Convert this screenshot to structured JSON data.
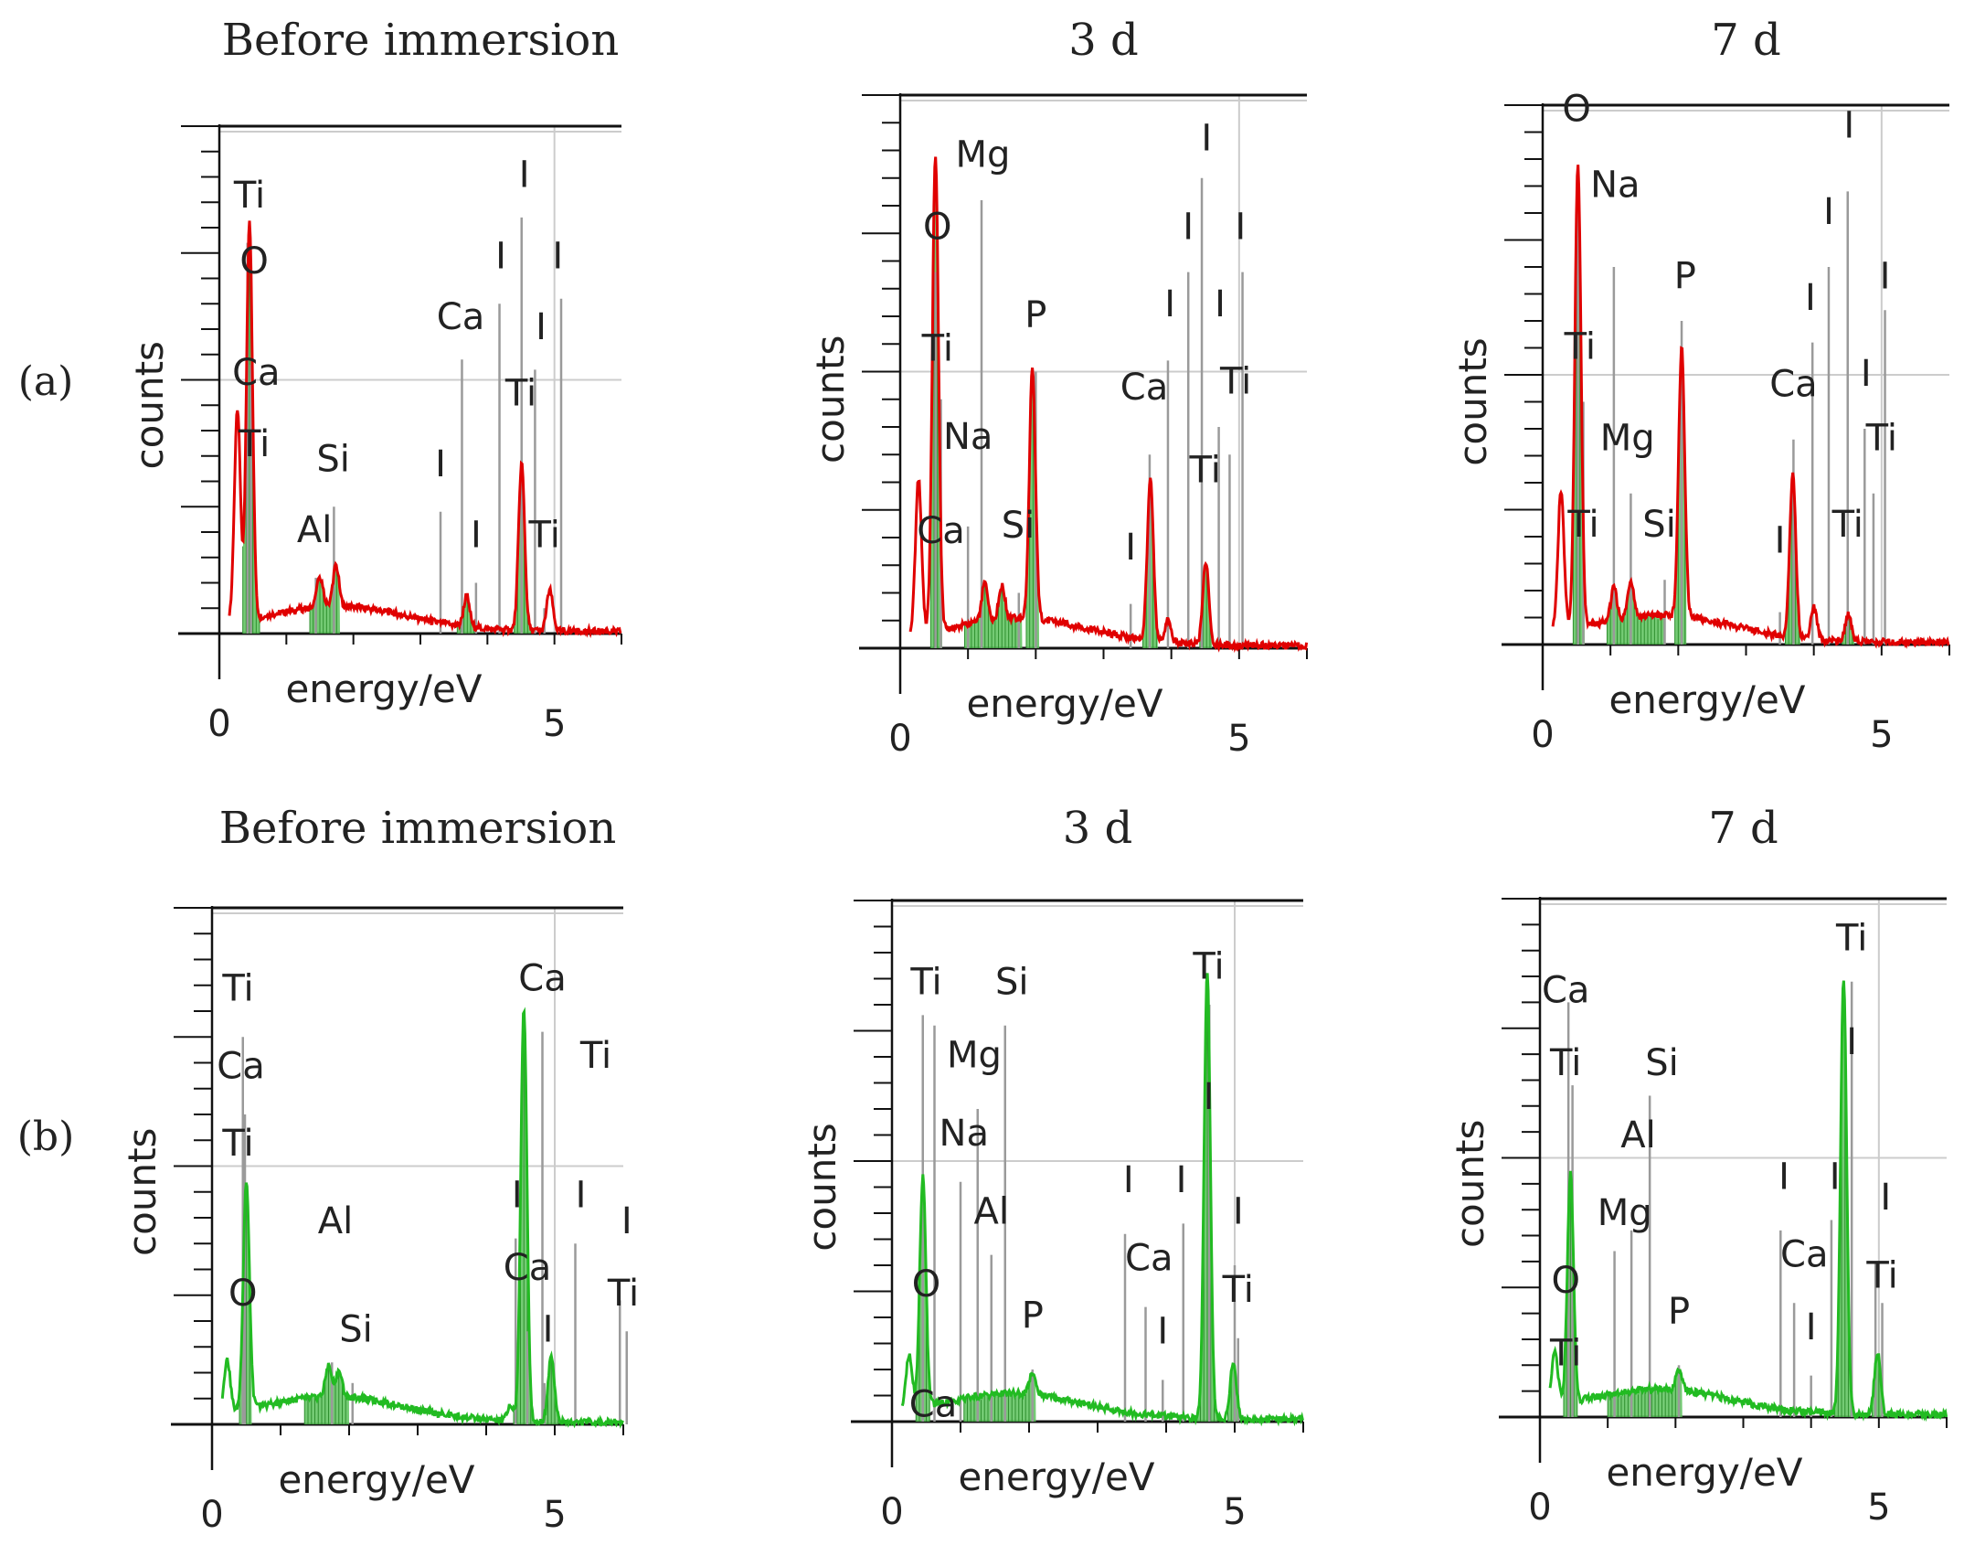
{
  "figure": {
    "row_labels": [
      "(a)",
      "(b)"
    ]
  },
  "chart_data": [
    {
      "type": "line",
      "row": "(a)",
      "title": "Before immersion",
      "xlabel": "energy/eV",
      "ylabel": "counts",
      "xticks": [
        0,
        5
      ],
      "xlim": [
        0,
        6
      ],
      "ylim": [
        0,
        100
      ],
      "color": "#e00000",
      "fill": "#5cc25c",
      "peaks": [
        [
          0.27,
          42
        ],
        [
          0.45,
          78
        ],
        [
          1.5,
          6
        ],
        [
          1.74,
          8
        ],
        [
          3.69,
          6
        ],
        [
          4.51,
          33
        ],
        [
          4.93,
          8
        ]
      ],
      "bands": [
        [
          0.35,
          0.6
        ],
        [
          1.35,
          1.8
        ],
        [
          3.55,
          3.8
        ],
        [
          4.4,
          4.65
        ]
      ],
      "labels": [
        {
          "text": "Ti",
          "x": 0.45,
          "y": 84
        },
        {
          "text": "O",
          "x": 0.52,
          "y": 71
        },
        {
          "text": "Ca",
          "x": 0.55,
          "y": 49
        },
        {
          "text": "Ti",
          "x": 0.52,
          "y": 35
        },
        {
          "text": "Si",
          "x": 1.7,
          "y": 32
        },
        {
          "text": "Al",
          "x": 1.42,
          "y": 18
        },
        {
          "text": "Ca",
          "x": 3.6,
          "y": 60
        },
        {
          "text": "I",
          "x": 3.3,
          "y": 31
        },
        {
          "text": "I",
          "x": 3.83,
          "y": 17
        },
        {
          "text": "I",
          "x": 4.2,
          "y": 72
        },
        {
          "text": "I",
          "x": 4.55,
          "y": 88
        },
        {
          "text": "I",
          "x": 4.8,
          "y": 58
        },
        {
          "text": "I",
          "x": 5.05,
          "y": 72
        },
        {
          "text": "Ti",
          "x": 4.5,
          "y": 45
        },
        {
          "text": "Ti",
          "x": 4.85,
          "y": 17
        }
      ],
      "lines": [
        [
          0.42,
          77
        ],
        [
          0.47,
          53
        ],
        [
          1.44,
          11
        ],
        [
          1.71,
          25
        ],
        [
          3.3,
          24
        ],
        [
          3.62,
          54
        ],
        [
          3.83,
          10
        ],
        [
          4.18,
          65
        ],
        [
          4.51,
          82
        ],
        [
          4.71,
          52
        ],
        [
          4.85,
          5
        ],
        [
          5.1,
          66
        ]
      ]
    },
    {
      "type": "line",
      "row": "(a)",
      "title": "3 d",
      "xlabel": "energy/eV",
      "ylabel": "counts",
      "xticks": [
        0,
        5
      ],
      "xlim": [
        0,
        6
      ],
      "ylim": [
        0,
        100
      ],
      "color": "#e00000",
      "fill": "#5cc25c",
      "peaks": [
        [
          0.27,
          28
        ],
        [
          0.52,
          86
        ],
        [
          1.25,
          7
        ],
        [
          1.5,
          6
        ],
        [
          1.95,
          45
        ],
        [
          3.69,
          29
        ],
        [
          4.51,
          15
        ],
        [
          3.95,
          4
        ]
      ],
      "bands": [
        [
          0.45,
          0.62
        ],
        [
          0.95,
          1.8
        ],
        [
          1.86,
          2.05
        ],
        [
          3.58,
          3.8
        ],
        [
          4.42,
          4.6
        ]
      ],
      "labels": [
        {
          "text": "Mg",
          "x": 1.22,
          "y": 87
        },
        {
          "text": "O",
          "x": 0.55,
          "y": 74
        },
        {
          "text": "P",
          "x": 2.0,
          "y": 58
        },
        {
          "text": "Ti",
          "x": 0.55,
          "y": 52
        },
        {
          "text": "Na",
          "x": 1.0,
          "y": 36
        },
        {
          "text": "Ca",
          "x": 0.6,
          "y": 19
        },
        {
          "text": "Si",
          "x": 1.74,
          "y": 20
        },
        {
          "text": "Ca",
          "x": 3.6,
          "y": 45
        },
        {
          "text": "Ti",
          "x": 4.5,
          "y": 30
        },
        {
          "text": "I",
          "x": 3.4,
          "y": 16
        },
        {
          "text": "I",
          "x": 3.98,
          "y": 60
        },
        {
          "text": "I",
          "x": 4.25,
          "y": 74
        },
        {
          "text": "I",
          "x": 4.52,
          "y": 90
        },
        {
          "text": "I",
          "x": 4.72,
          "y": 60
        },
        {
          "text": "I",
          "x": 5.02,
          "y": 74
        },
        {
          "text": "Ti",
          "x": 4.95,
          "y": 46
        }
      ],
      "lines": [
        [
          0.52,
          68
        ],
        [
          0.6,
          45
        ],
        [
          1.0,
          22
        ],
        [
          1.2,
          81
        ],
        [
          1.75,
          10
        ],
        [
          2.0,
          50
        ],
        [
          3.68,
          35
        ],
        [
          3.4,
          8
        ],
        [
          3.95,
          52
        ],
        [
          4.25,
          68
        ],
        [
          4.45,
          85
        ],
        [
          4.7,
          40
        ],
        [
          4.86,
          35
        ],
        [
          5.05,
          68
        ]
      ]
    },
    {
      "type": "line",
      "row": "(a)",
      "title": "7 d",
      "xlabel": "energy/eV",
      "ylabel": "counts",
      "xticks": [
        0,
        5
      ],
      "xlim": [
        0,
        6
      ],
      "ylim": [
        0,
        100
      ],
      "color": "#e00000",
      "fill": "#5cc25c",
      "peaks": [
        [
          0.27,
          26
        ],
        [
          0.52,
          86
        ],
        [
          1.05,
          6
        ],
        [
          1.3,
          7
        ],
        [
          2.05,
          50
        ],
        [
          3.69,
          30
        ],
        [
          4.51,
          5
        ],
        [
          4.0,
          6
        ]
      ],
      "bands": [
        [
          0.45,
          0.62
        ],
        [
          0.95,
          1.8
        ],
        [
          1.95,
          2.12
        ],
        [
          3.58,
          3.8
        ],
        [
          4.42,
          4.6
        ]
      ],
      "labels": [
        {
          "text": "O",
          "x": 0.5,
          "y": 97
        },
        {
          "text": "Na",
          "x": 1.07,
          "y": 83
        },
        {
          "text": "P",
          "x": 2.1,
          "y": 66
        },
        {
          "text": "Ti",
          "x": 0.55,
          "y": 53
        },
        {
          "text": "Mg",
          "x": 1.25,
          "y": 36
        },
        {
          "text": "Si",
          "x": 1.72,
          "y": 20
        },
        {
          "text": "Ti",
          "x": 0.6,
          "y": 20
        },
        {
          "text": "Ca",
          "x": 3.7,
          "y": 46
        },
        {
          "text": "I",
          "x": 3.5,
          "y": 17
        },
        {
          "text": "I",
          "x": 3.95,
          "y": 62
        },
        {
          "text": "I",
          "x": 4.22,
          "y": 78
        },
        {
          "text": "I",
          "x": 4.52,
          "y": 94
        },
        {
          "text": "I",
          "x": 4.77,
          "y": 48
        },
        {
          "text": "I",
          "x": 5.05,
          "y": 66
        },
        {
          "text": "Ti",
          "x": 4.5,
          "y": 20
        },
        {
          "text": "Ti",
          "x": 5.0,
          "y": 36
        }
      ],
      "lines": [
        [
          0.52,
          88
        ],
        [
          0.6,
          45
        ],
        [
          1.05,
          70
        ],
        [
          1.3,
          28
        ],
        [
          1.8,
          12
        ],
        [
          2.05,
          60
        ],
        [
          3.7,
          38
        ],
        [
          3.5,
          6
        ],
        [
          3.98,
          56
        ],
        [
          4.22,
          70
        ],
        [
          4.5,
          84
        ],
        [
          4.75,
          40
        ],
        [
          4.88,
          28
        ],
        [
          5.05,
          62
        ]
      ]
    },
    {
      "type": "line",
      "row": "(b)",
      "title": "Before immersion",
      "xlabel": "energy/eV",
      "ylabel": "counts",
      "xticks": [
        0,
        5
      ],
      "xlim": [
        0,
        6
      ],
      "ylim": [
        0,
        100
      ],
      "color": "#22bb22",
      "fill": "#5cc25c",
      "peaks": [
        [
          0.22,
          10
        ],
        [
          0.5,
          44
        ],
        [
          1.85,
          5
        ],
        [
          1.7,
          6
        ],
        [
          4.35,
          3
        ],
        [
          4.55,
          80
        ],
        [
          4.95,
          13
        ]
      ],
      "bands": [
        [
          0.4,
          0.58
        ],
        [
          1.35,
          2.0
        ],
        [
          4.4,
          4.75
        ],
        [
          4.85,
          5.05
        ]
      ],
      "labels": [
        {
          "text": "Ti",
          "x": 0.38,
          "y": 82
        },
        {
          "text": "Ca",
          "x": 0.42,
          "y": 67
        },
        {
          "text": "Ti",
          "x": 0.38,
          "y": 52
        },
        {
          "text": "O",
          "x": 0.45,
          "y": 23
        },
        {
          "text": "Al",
          "x": 1.8,
          "y": 37
        },
        {
          "text": "Si",
          "x": 2.1,
          "y": 16
        },
        {
          "text": "Ca",
          "x": 4.82,
          "y": 84
        },
        {
          "text": "Ti",
          "x": 5.6,
          "y": 69
        },
        {
          "text": "I",
          "x": 4.45,
          "y": 42
        },
        {
          "text": "Ca",
          "x": 4.6,
          "y": 28
        },
        {
          "text": "I",
          "x": 4.9,
          "y": 16
        },
        {
          "text": "I",
          "x": 5.38,
          "y": 42
        },
        {
          "text": "I",
          "x": 6.05,
          "y": 37
        },
        {
          "text": "Ti",
          "x": 6.0,
          "y": 23
        }
      ],
      "lines": [
        [
          0.45,
          75
        ],
        [
          0.48,
          60
        ],
        [
          0.45,
          36
        ],
        [
          1.75,
          12
        ],
        [
          2.05,
          8
        ],
        [
          4.43,
          36
        ],
        [
          4.6,
          18
        ],
        [
          4.85,
          8
        ],
        [
          4.82,
          76
        ],
        [
          5.3,
          35
        ],
        [
          5.95,
          24
        ],
        [
          6.05,
          18
        ]
      ]
    },
    {
      "type": "line",
      "row": "(b)",
      "title": "3 d",
      "xlabel": "energy/eV",
      "ylabel": "counts",
      "xticks": [
        0,
        5
      ],
      "xlim": [
        0,
        6
      ],
      "ylim": [
        0,
        100
      ],
      "color": "#22bb22",
      "fill": "#5cc25c",
      "peaks": [
        [
          0.25,
          10
        ],
        [
          0.45,
          44
        ],
        [
          2.05,
          4
        ],
        [
          4.6,
          86
        ],
        [
          4.98,
          11
        ]
      ],
      "bands": [
        [
          0.35,
          0.55
        ],
        [
          1.05,
          2.1
        ],
        [
          4.45,
          4.75
        ],
        [
          4.9,
          5.05
        ]
      ],
      "labels": [
        {
          "text": "Ti",
          "x": 0.5,
          "y": 82
        },
        {
          "text": "Si",
          "x": 1.75,
          "y": 82
        },
        {
          "text": "Mg",
          "x": 1.2,
          "y": 68
        },
        {
          "text": "Na",
          "x": 1.05,
          "y": 53
        },
        {
          "text": "Al",
          "x": 1.45,
          "y": 38
        },
        {
          "text": "O",
          "x": 0.5,
          "y": 24
        },
        {
          "text": "P",
          "x": 2.05,
          "y": 18
        },
        {
          "text": "Ca",
          "x": 0.6,
          "y": 1
        },
        {
          "text": "Ti",
          "x": 4.62,
          "y": 85
        },
        {
          "text": "I",
          "x": 4.62,
          "y": 60
        },
        {
          "text": "I",
          "x": 3.45,
          "y": 44
        },
        {
          "text": "Ca",
          "x": 3.75,
          "y": 29
        },
        {
          "text": "I",
          "x": 3.95,
          "y": 15
        },
        {
          "text": "I",
          "x": 4.22,
          "y": 44
        },
        {
          "text": "I",
          "x": 5.05,
          "y": 38
        },
        {
          "text": "Ti",
          "x": 5.05,
          "y": 23
        }
      ],
      "lines": [
        [
          0.45,
          78
        ],
        [
          0.62,
          76
        ],
        [
          1.0,
          46
        ],
        [
          1.25,
          60
        ],
        [
          1.45,
          32
        ],
        [
          1.65,
          76
        ],
        [
          2.05,
          10
        ],
        [
          3.4,
          36
        ],
        [
          3.7,
          22
        ],
        [
          3.95,
          8
        ],
        [
          4.25,
          38
        ],
        [
          4.63,
          80
        ],
        [
          5.0,
          30
        ],
        [
          5.05,
          16
        ]
      ]
    },
    {
      "type": "line",
      "row": "(b)",
      "title": "7 d",
      "xlabel": "energy/eV",
      "ylabel": "counts",
      "xticks": [
        0,
        5
      ],
      "xlim": [
        0,
        6
      ],
      "ylim": [
        0,
        100
      ],
      "color": "#22bb22",
      "fill": "#5cc25c",
      "peaks": [
        [
          0.22,
          10
        ],
        [
          0.45,
          44
        ],
        [
          2.05,
          4
        ],
        [
          4.48,
          84
        ],
        [
          4.98,
          12
        ]
      ],
      "bands": [
        [
          0.35,
          0.55
        ],
        [
          1.0,
          2.1
        ],
        [
          4.35,
          4.65
        ],
        [
          4.9,
          5.05
        ]
      ],
      "labels": [
        {
          "text": "Ca",
          "x": 0.38,
          "y": 80
        },
        {
          "text": "Ti",
          "x": 0.38,
          "y": 66
        },
        {
          "text": "Si",
          "x": 1.8,
          "y": 66
        },
        {
          "text": "Al",
          "x": 1.45,
          "y": 52
        },
        {
          "text": "Mg",
          "x": 1.25,
          "y": 37
        },
        {
          "text": "O",
          "x": 0.38,
          "y": 24
        },
        {
          "text": "P",
          "x": 2.05,
          "y": 18
        },
        {
          "text": "Ti",
          "x": 0.38,
          "y": 10
        },
        {
          "text": "Ti",
          "x": 4.6,
          "y": 90
        },
        {
          "text": "I",
          "x": 4.6,
          "y": 70
        },
        {
          "text": "I",
          "x": 3.6,
          "y": 44
        },
        {
          "text": "Ca",
          "x": 3.9,
          "y": 29
        },
        {
          "text": "I",
          "x": 4.0,
          "y": 15
        },
        {
          "text": "I",
          "x": 4.35,
          "y": 44
        },
        {
          "text": "I",
          "x": 5.1,
          "y": 40
        },
        {
          "text": "Ti",
          "x": 5.05,
          "y": 25
        }
      ],
      "lines": [
        [
          0.42,
          80
        ],
        [
          0.48,
          64
        ],
        [
          1.1,
          32
        ],
        [
          1.35,
          36
        ],
        [
          1.62,
          62
        ],
        [
          2.05,
          10
        ],
        [
          3.55,
          36
        ],
        [
          3.75,
          22
        ],
        [
          4.0,
          8
        ],
        [
          4.3,
          38
        ],
        [
          4.6,
          84
        ],
        [
          4.95,
          30
        ],
        [
          5.05,
          22
        ]
      ]
    }
  ]
}
